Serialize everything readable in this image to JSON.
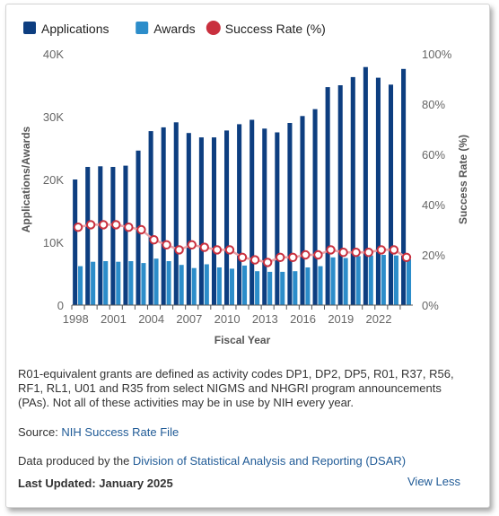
{
  "chart_data": {
    "type": "bar",
    "legend": [
      {
        "label": "Applications",
        "color": "#0d3e80",
        "shape": "square"
      },
      {
        "label": "Awards",
        "color": "#2c8dca",
        "shape": "square"
      },
      {
        "label": "Success Rate (%)",
        "color": "#c9303e",
        "shape": "circle"
      }
    ],
    "legend_position": "top-left",
    "x": [
      1998,
      1999,
      2000,
      2001,
      2002,
      2003,
      2004,
      2005,
      2006,
      2007,
      2008,
      2009,
      2010,
      2011,
      2012,
      2013,
      2014,
      2015,
      2016,
      2017,
      2018,
      2019,
      2020,
      2021,
      2022,
      2023,
      2024
    ],
    "x_tick_labels": [
      "1998",
      "2001",
      "2004",
      "2007",
      "2010",
      "2013",
      "2016",
      "2019",
      "2022"
    ],
    "series": [
      {
        "name": "Applications",
        "type": "bar",
        "axis": "left",
        "color": "#0d3e80",
        "values": [
          20000,
          22000,
          22100,
          22000,
          22200,
          24600,
          27700,
          28300,
          29100,
          27400,
          26700,
          26700,
          27800,
          28800,
          29500,
          28100,
          27500,
          29000,
          30100,
          31200,
          34700,
          35000,
          36300,
          37900,
          36200,
          35100,
          37600
        ]
      },
      {
        "name": "Awards",
        "type": "bar",
        "axis": "left",
        "color": "#2c8dca",
        "values": [
          6200,
          6900,
          7000,
          6900,
          7000,
          6700,
          7400,
          7000,
          6400,
          5900,
          6500,
          6000,
          5800,
          6300,
          5400,
          5300,
          5300,
          5400,
          6000,
          6200,
          7600,
          7500,
          7800,
          7900,
          8000,
          7900,
          7300
        ]
      },
      {
        "name": "Success Rate (%)",
        "type": "line",
        "axis": "right",
        "color": "#c9303e",
        "values": [
          31,
          32,
          32,
          32,
          31,
          30,
          26,
          24,
          22,
          24,
          23,
          22,
          22,
          19,
          18,
          17,
          19,
          19,
          20,
          20,
          22,
          21,
          21,
          21,
          22,
          22,
          19
        ]
      }
    ],
    "left_axis": {
      "label": "Applications/Awards",
      "ylim": [
        0,
        40000
      ],
      "ticks": [
        "0",
        "10K",
        "20K",
        "30K",
        "40K"
      ]
    },
    "right_axis": {
      "label": "Success Rate (%)",
      "ylim": [
        0,
        100
      ],
      "ticks": [
        "0%",
        "20%",
        "40%",
        "60%",
        "80%",
        "100%"
      ]
    },
    "xlabel": "Fiscal Year",
    "grid": false
  },
  "notes": {
    "definition": "R01-equivalent grants are defined as activity codes DP1, DP2, DP5, R01, R37, R56, RF1, RL1, U01 and R35 from select NIGMS and NHGRI program announcements (PAs). Not all of these activities may be in use by NIH every year.",
    "source_prefix": "Source: ",
    "source_link": "NIH Success Rate File",
    "produced_prefix": "Data produced by the ",
    "produced_link": "Division of Statistical Analysis and Reporting (DSAR)",
    "last_updated": "Last Updated: January 2025",
    "view_less": "View Less"
  }
}
